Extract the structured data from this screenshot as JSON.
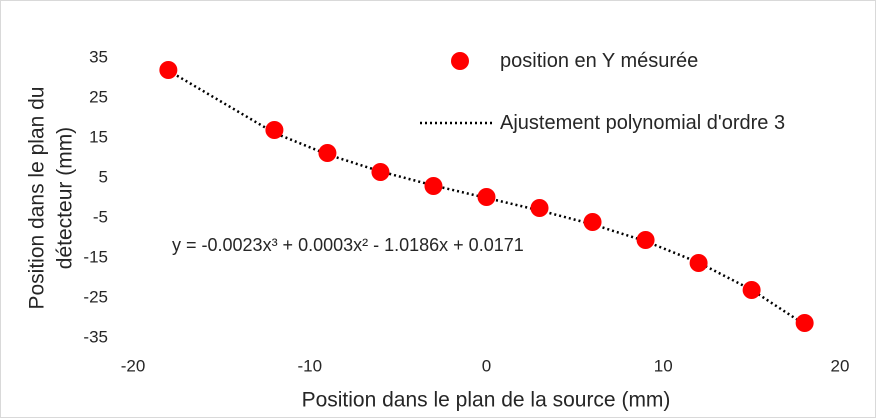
{
  "chart_data": {
    "type": "scatter",
    "xlabel": "Position dans le plan de la source (mm)",
    "ylabel": [
      "Position dans  le plan du",
      "détecteur (mm)"
    ],
    "annotation": "y = -0.0023x³ + 0.0003x² - 1.0186x + 0.0171",
    "xlim": [
      -20,
      20
    ],
    "xticks": [
      -20,
      -10,
      0,
      10,
      20
    ],
    "ylim": [
      -35,
      35
    ],
    "yticks": [
      -35,
      -25,
      -15,
      -5,
      5,
      15,
      25,
      35
    ],
    "grid": false,
    "series": [
      {
        "name": "position en Y mésurée",
        "color": "#ff0000",
        "x": [
          -18,
          -12,
          -9,
          -6,
          -3,
          0,
          3,
          6,
          9,
          12,
          15,
          18
        ],
        "values": [
          32,
          17,
          11.25,
          6.5,
          3,
          0.25,
          -2.5,
          -6,
          -10.5,
          -16.25,
          -23,
          -31.25
        ]
      },
      {
        "name": "Ajustement polynomial d'ordre 3",
        "color": "#000000",
        "style": "dotted",
        "x": [
          -18,
          -12,
          -9,
          -6,
          -3,
          0,
          3,
          6,
          9,
          12,
          15,
          18
        ],
        "values": [
          31.86,
          16.26,
          10.89,
          6.64,
          3.14,
          0.02,
          -3.1,
          -6.58,
          -10.8,
          -16.14,
          -22.96,
          -31.63
        ]
      }
    ]
  }
}
